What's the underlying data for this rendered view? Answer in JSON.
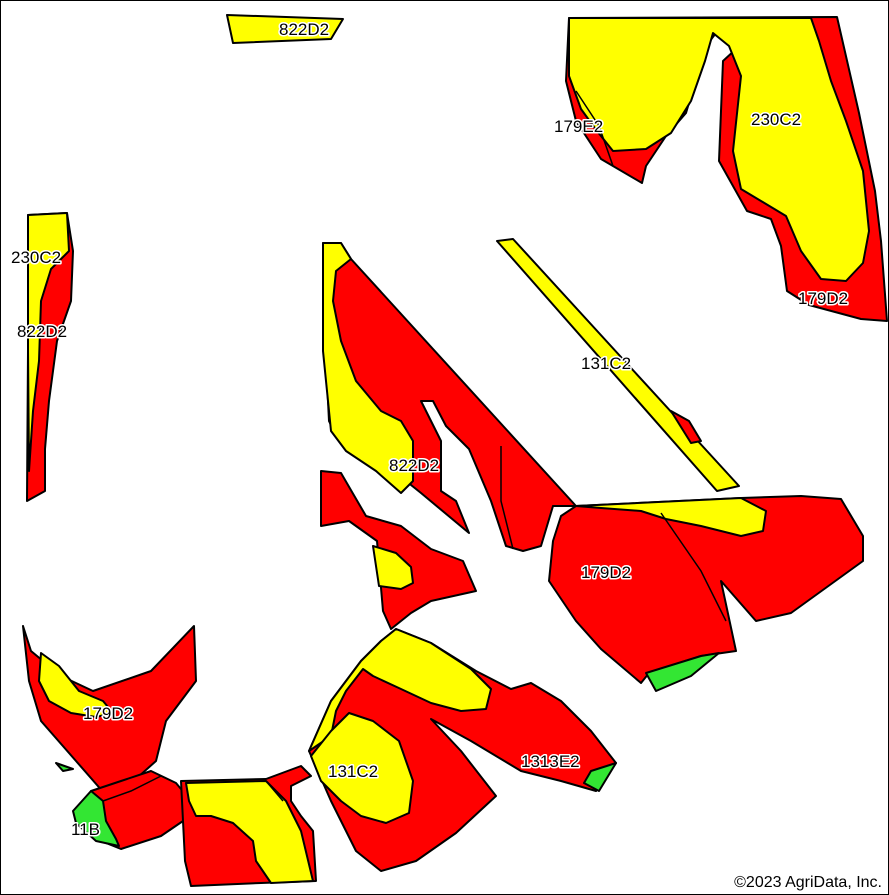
{
  "colors": {
    "red": "#ff0000",
    "yellow": "#ffff00",
    "green": "#33e633",
    "outline": "#000000",
    "background": "#ffffff"
  },
  "labels": {
    "l1": "822D2",
    "l2": "179E2",
    "l3": "230C2",
    "l4": "230C2",
    "l5": "822D2",
    "l6": "179D2",
    "l7": "131C2",
    "l8": "822D2",
    "l9": "179D2",
    "l10": "179D2",
    "l11": "131C2",
    "l12": "1313E2",
    "l13": "11B"
  },
  "copyright": "©2023 AgriData, Inc."
}
